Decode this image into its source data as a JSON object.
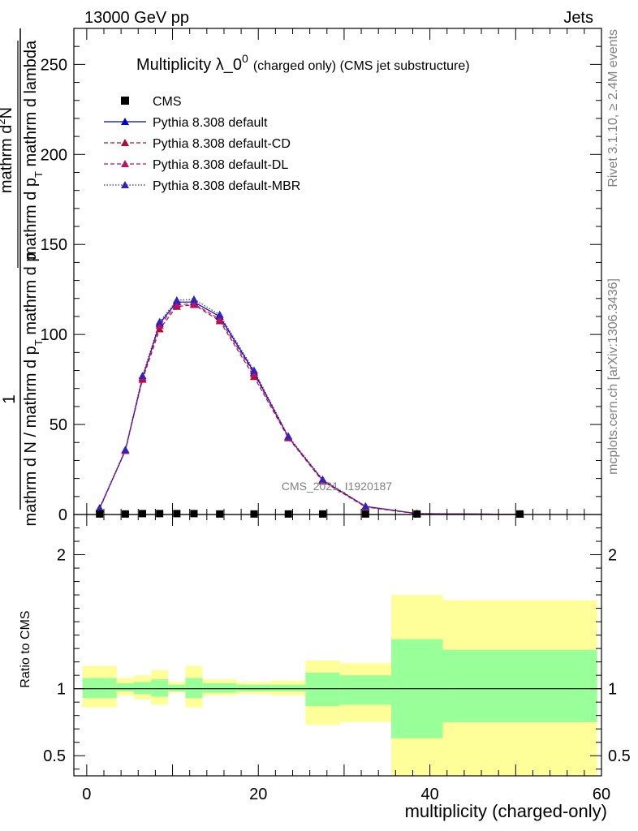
{
  "header": {
    "left": "13000 GeV pp",
    "right": "Jets"
  },
  "side_text": {
    "top": "Rivet 3.1.10, ≥ 2.4M events",
    "bottom": "mcplots.cern.ch [arXiv:1306.3436]"
  },
  "watermark": "CMS_2021_I1920187",
  "chart_data": [
    {
      "type": "line",
      "title": "Multiplicity λ_0",
      "title_sup": "0",
      "title_note": "(charged only) (CMS jet substructure)",
      "ylabel_top": "1",
      "ylabel_frac_num": "mathrm d",
      "ylabel_frac_num_sup": "2",
      "ylabel_frac_num_end": "N",
      "ylabel_top_den": "mathrm d p",
      "ylabel_top_den_sub": "T",
      "ylabel_top_den_end": " mathrm d lambda",
      "ylabel_bottom": "mathrm d N / mathrm d p",
      "ylabel_bottom_sub": "T",
      "ylabel_bottom_end": " mathrm d p",
      "xlim": [
        -1.5,
        60
      ],
      "ylim": [
        0,
        270
      ],
      "yticks": [
        "0",
        "50",
        "100",
        "150",
        "200",
        "250"
      ],
      "yticks_values": [
        0,
        50,
        100,
        150,
        200,
        250
      ],
      "x": [
        1.5,
        4.5,
        6.5,
        8.5,
        10.5,
        12.5,
        15.5,
        19.5,
        23.5,
        27.5,
        32.5,
        38.5,
        50.5
      ],
      "cms": [
        0.3,
        0.3,
        0.5,
        0.5,
        0.5,
        0.5,
        0.3,
        0.3,
        0.3,
        0.3,
        0.3,
        0.3,
        0.3
      ],
      "series": [
        {
          "name": "Pythia 8.308 default",
          "color": "#0000cc",
          "dash": "",
          "values": [
            3.5,
            35.5,
            76,
            106,
            118,
            118,
            110,
            79,
            43,
            19,
            4.5,
            0.5,
            0.1
          ]
        },
        {
          "name": "Pythia 8.308 default-CD",
          "color": "#aa1133",
          "dash": "5,3",
          "values": [
            3.0,
            35.5,
            75,
            103,
            115.5,
            116.5,
            107.5,
            76.5,
            42.5,
            18.5,
            4.2,
            0.4,
            0.1
          ]
        },
        {
          "name": "Pythia 8.308 default-DL",
          "color": "#bb1166",
          "dash": "5,3",
          "values": [
            3.3,
            35.5,
            76,
            105,
            116.5,
            117,
            108.5,
            78,
            43,
            19,
            4.4,
            0.5,
            0.1
          ]
        },
        {
          "name": "Pythia 8.308 default-MBR",
          "color": "#3322bb",
          "dash": "1.5,2",
          "values": [
            3.6,
            36,
            77,
            107,
            119,
            119.5,
            111,
            80,
            43.5,
            19.5,
            4.6,
            0.5,
            0.1
          ]
        }
      ],
      "legend_data_name": "CMS"
    },
    {
      "type": "area",
      "ylabel": "Ratio to CMS",
      "xlabel": "multiplicity (charged-only)",
      "xlim": [
        -1.5,
        60
      ],
      "ylim": [
        0.35,
        2.3
      ],
      "xticks": [
        "0",
        "20",
        "40",
        "60"
      ],
      "xticks_values": [
        0,
        20,
        40,
        60
      ],
      "yticks": [
        "0.5",
        "1",
        "2"
      ],
      "yticks_values": [
        0.5,
        1,
        2
      ],
      "bins": [
        {
          "x0": -0.5,
          "x1": 3.5,
          "y_lo": 0.86,
          "y_hi": 1.17,
          "g_lo": 0.93,
          "g_hi": 1.08
        },
        {
          "x0": 3.5,
          "x1": 5.5,
          "y_lo": 0.95,
          "y_hi": 1.08,
          "g_lo": 0.98,
          "g_hi": 1.04
        },
        {
          "x0": 5.5,
          "x1": 7.5,
          "y_lo": 0.92,
          "y_hi": 1.1,
          "g_lo": 0.96,
          "g_hi": 1.05
        },
        {
          "x0": 7.5,
          "x1": 9.5,
          "y_lo": 0.88,
          "y_hi": 1.14,
          "g_lo": 0.94,
          "g_hi": 1.07
        },
        {
          "x0": 9.5,
          "x1": 11.5,
          "y_lo": 0.97,
          "y_hi": 1.05,
          "g_lo": 0.98,
          "g_hi": 1.03
        },
        {
          "x0": 11.5,
          "x1": 13.5,
          "y_lo": 0.86,
          "y_hi": 1.17,
          "g_lo": 0.93,
          "g_hi": 1.08
        },
        {
          "x0": 13.5,
          "x1": 17.5,
          "y_lo": 0.95,
          "y_hi": 1.07,
          "g_lo": 0.97,
          "g_hi": 1.04
        },
        {
          "x0": 17.5,
          "x1": 21.5,
          "y_lo": 0.96,
          "y_hi": 1.05,
          "g_lo": 0.98,
          "g_hi": 1.03
        },
        {
          "x0": 21.5,
          "x1": 25.5,
          "y_lo": 0.95,
          "y_hi": 1.06,
          "g_lo": 0.98,
          "g_hi": 1.03
        },
        {
          "x0": 25.5,
          "x1": 29.5,
          "y_lo": 0.73,
          "y_hi": 1.21,
          "g_lo": 0.87,
          "g_hi": 1.12
        },
        {
          "x0": 29.5,
          "x1": 35.5,
          "y_lo": 0.75,
          "y_hi": 1.19,
          "g_lo": 0.88,
          "g_hi": 1.1
        },
        {
          "x0": 35.5,
          "x1": 41.5,
          "y_lo": 0.3,
          "y_hi": 1.7,
          "g_lo": 0.63,
          "g_hi": 1.37
        },
        {
          "x0": 41.5,
          "x1": 59.5,
          "y_lo": 0.3,
          "y_hi": 1.66,
          "g_lo": 0.75,
          "g_hi": 1.29
        }
      ]
    }
  ]
}
